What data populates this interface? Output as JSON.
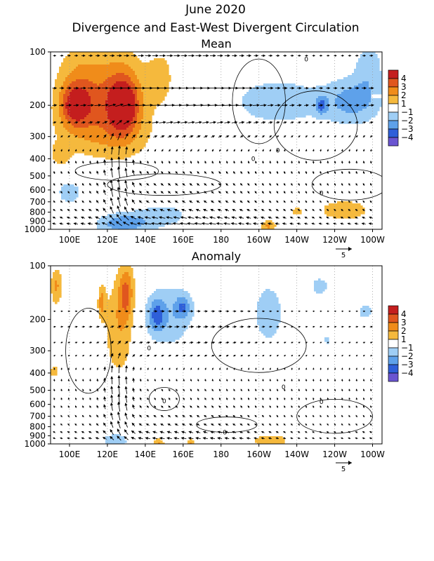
{
  "title": "June 2020",
  "subtitle": "Divergence and East-West Divergent Circulation",
  "colors": {
    "pos": [
      "#ffffff",
      "#f5b93d",
      "#f08c1a",
      "#e0561e",
      "#c41e1e"
    ],
    "neg": [
      "#ffffff",
      "#9fcef5",
      "#5ea1ea",
      "#2e5fd9",
      "#6a55d1"
    ]
  },
  "colorbar_levels": [
    "4",
    "3",
    "2",
    "1",
    "−1",
    "−2",
    "−3",
    "−4"
  ],
  "x_ticks": [
    "100E",
    "120E",
    "140E",
    "160E",
    "180",
    "160W",
    "140W",
    "120W",
    "100W"
  ],
  "y_ticks": [
    "100",
    "200",
    "300",
    "400",
    "500",
    "600",
    "700",
    "800",
    "900",
    "1000"
  ],
  "ref_vector_label": "5",
  "chart_data": [
    {
      "type": "heatmap",
      "title": "Mean",
      "xlabel": "",
      "ylabel": "",
      "x_domain": [
        90,
        265
      ],
      "y_log_pressure": [
        100,
        1000
      ],
      "levels": [
        -4,
        -3,
        -2,
        -1,
        1,
        2,
        3,
        4
      ],
      "blobs": [
        {
          "lon": 107,
          "p": 160,
          "rx": 14,
          "rp": 0.55,
          "v": 2.6
        },
        {
          "lon": 103,
          "p": 200,
          "rx": 8,
          "rp": 0.25,
          "v": 3.2
        },
        {
          "lon": 128,
          "p": 180,
          "rx": 12,
          "rp": 0.55,
          "v": 3.4
        },
        {
          "lon": 128,
          "p": 200,
          "rx": 6,
          "rp": 0.25,
          "v": 4.2
        },
        {
          "lon": 148,
          "p": 140,
          "rx": 7,
          "rp": 0.35,
          "v": 1.6
        },
        {
          "lon": 118,
          "p": 290,
          "rx": 26,
          "rp": 0.35,
          "v": 1.5
        },
        {
          "lon": 95,
          "p": 380,
          "rx": 5,
          "rp": 0.15,
          "v": 1.4
        },
        {
          "lon": 210,
          "p": 190,
          "rx": 28,
          "rp": 0.35,
          "v": -1.6
        },
        {
          "lon": 250,
          "p": 190,
          "rx": 15,
          "rp": 0.3,
          "v": -2.3
        },
        {
          "lon": 258,
          "p": 120,
          "rx": 8,
          "rp": 0.35,
          "v": -1.5
        },
        {
          "lon": 233,
          "p": 200,
          "rx": 3,
          "rp": 0.12,
          "v": -2.2
        },
        {
          "lon": 100,
          "p": 620,
          "rx": 8,
          "rp": 0.18,
          "v": -1.5
        },
        {
          "lon": 128,
          "p": 930,
          "rx": 14,
          "rp": 0.14,
          "v": -2.7
        },
        {
          "lon": 150,
          "p": 830,
          "rx": 16,
          "rp": 0.18,
          "v": -1.4
        },
        {
          "lon": 245,
          "p": 780,
          "rx": 16,
          "rp": 0.16,
          "v": 1.6
        },
        {
          "lon": 205,
          "p": 960,
          "rx": 4,
          "rp": 0.08,
          "v": 2.2
        },
        {
          "lon": 220,
          "p": 790,
          "rx": 3,
          "rp": 0.06,
          "v": 1.5
        }
      ],
      "contours": [
        {
          "lon": 200,
          "p": 190,
          "rx": 14,
          "rp": 0.55
        },
        {
          "lon": 230,
          "p": 260,
          "rx": 22,
          "rp": 0.45
        },
        {
          "lon": 125,
          "p": 470,
          "rx": 22,
          "rp": 0.12
        },
        {
          "lon": 150,
          "p": 560,
          "rx": 30,
          "rp": 0.14
        },
        {
          "lon": 248,
          "p": 560,
          "rx": 20,
          "rp": 0.2
        }
      ],
      "contour_labels": [
        {
          "lon": 197,
          "p": 400,
          "text": "0"
        },
        {
          "lon": 210,
          "p": 360,
          "text": "0"
        },
        {
          "lon": 233,
          "p": 625,
          "text": "0"
        },
        {
          "lon": 225,
          "p": 110,
          "text": "0"
        }
      ],
      "vector_rows": [
        {
          "p": 105,
          "u": 2.0,
          "w": 0
        },
        {
          "p": 160,
          "u": 3.0,
          "w": 0
        },
        {
          "p": 200,
          "u": 3.2,
          "w": -0.4
        },
        {
          "p": 250,
          "u": 2.2,
          "w": -0.8
        },
        {
          "p": 300,
          "u": 1.2,
          "w": -1.4
        },
        {
          "p": 360,
          "u": 0.4,
          "w": -1.8
        },
        {
          "p": 420,
          "u": -0.3,
          "w": -2.2
        },
        {
          "p": 480,
          "u": -0.6,
          "w": -2.2
        },
        {
          "p": 560,
          "u": -0.8,
          "w": -2.0
        },
        {
          "p": 620,
          "u": -0.8,
          "w": -2.0
        },
        {
          "p": 700,
          "u": -1.0,
          "w": -1.8
        },
        {
          "p": 780,
          "u": -1.4,
          "w": -1.6
        },
        {
          "p": 860,
          "u": -2.0,
          "w": -1.2
        },
        {
          "p": 930,
          "u": -2.4,
          "w": -0.8
        }
      ]
    },
    {
      "type": "heatmap",
      "title": "Anomaly",
      "xlabel": "",
      "ylabel": "",
      "x_domain": [
        90,
        265
      ],
      "y_log_pressure": [
        100,
        1000
      ],
      "levels": [
        -4,
        -3,
        -2,
        -1,
        1,
        2,
        3,
        4
      ],
      "blobs": [
        {
          "lon": 93,
          "p": 130,
          "rx": 3,
          "rp": 0.25,
          "v": 2.2
        },
        {
          "lon": 126,
          "p": 220,
          "rx": 8,
          "rp": 0.65,
          "v": 1.9
        },
        {
          "lon": 130,
          "p": 140,
          "rx": 4,
          "rp": 0.35,
          "v": 2.7
        },
        {
          "lon": 117,
          "p": 160,
          "rx": 2,
          "rp": 0.2,
          "v": 2.2
        },
        {
          "lon": 92,
          "p": 390,
          "rx": 3,
          "rp": 0.1,
          "v": 1.5
        },
        {
          "lon": 152,
          "p": 190,
          "rx": 14,
          "rp": 0.45,
          "v": -1.8
        },
        {
          "lon": 146,
          "p": 190,
          "rx": 4,
          "rp": 0.2,
          "v": -2.3
        },
        {
          "lon": 160,
          "p": 170,
          "rx": 4,
          "rp": 0.15,
          "v": -2.1
        },
        {
          "lon": 205,
          "p": 185,
          "rx": 9,
          "rp": 0.45,
          "v": -1.6
        },
        {
          "lon": 232,
          "p": 130,
          "rx": 6,
          "rp": 0.15,
          "v": -1.4
        },
        {
          "lon": 256,
          "p": 180,
          "rx": 5,
          "rp": 0.12,
          "v": -1.4
        },
        {
          "lon": 236,
          "p": 260,
          "rx": 2,
          "rp": 0.07,
          "v": -1.4
        },
        {
          "lon": 124,
          "p": 960,
          "rx": 7,
          "rp": 0.1,
          "v": -1.9
        },
        {
          "lon": 147,
          "p": 990,
          "rx": 3,
          "rp": 0.06,
          "v": 2.1
        },
        {
          "lon": 164,
          "p": 990,
          "rx": 2,
          "rp": 0.06,
          "v": 2.1
        },
        {
          "lon": 206,
          "p": 960,
          "rx": 10,
          "rp": 0.09,
          "v": 1.9
        }
      ],
      "contours": [
        {
          "lon": 110,
          "p": 300,
          "rx": 12,
          "rp": 0.55
        },
        {
          "lon": 200,
          "p": 280,
          "rx": 25,
          "rp": 0.35
        },
        {
          "lon": 150,
          "p": 560,
          "rx": 8,
          "rp": 0.15
        },
        {
          "lon": 240,
          "p": 700,
          "rx": 20,
          "rp": 0.22
        },
        {
          "lon": 183,
          "p": 780,
          "rx": 16,
          "rp": 0.1
        }
      ],
      "contour_labels": [
        {
          "lon": 142,
          "p": 290,
          "text": "0"
        },
        {
          "lon": 150,
          "p": 575,
          "text": "0"
        },
        {
          "lon": 213,
          "p": 480,
          "text": "0"
        },
        {
          "lon": 233,
          "p": 580,
          "text": "0"
        },
        {
          "lon": 182,
          "p": 860,
          "text": "0"
        }
      ],
      "vector_rows": [
        {
          "p": 180,
          "u": 1.2,
          "w": 0
        },
        {
          "p": 220,
          "u": 1.5,
          "w": -0.3
        },
        {
          "p": 270,
          "u": 1.2,
          "w": -0.6
        },
        {
          "p": 320,
          "u": 0.8,
          "w": -1.0
        },
        {
          "p": 380,
          "u": 0.2,
          "w": -1.6
        },
        {
          "p": 440,
          "u": -0.2,
          "w": -1.8
        },
        {
          "p": 500,
          "u": -0.4,
          "w": -1.8
        },
        {
          "p": 560,
          "u": -0.4,
          "w": -1.8
        },
        {
          "p": 620,
          "u": -0.6,
          "w": -1.8
        },
        {
          "p": 700,
          "u": -0.8,
          "w": -1.6
        },
        {
          "p": 780,
          "u": -1.0,
          "w": -1.4
        },
        {
          "p": 860,
          "u": -1.4,
          "w": -1.2
        },
        {
          "p": 930,
          "u": -1.6,
          "w": -0.8
        }
      ]
    }
  ]
}
